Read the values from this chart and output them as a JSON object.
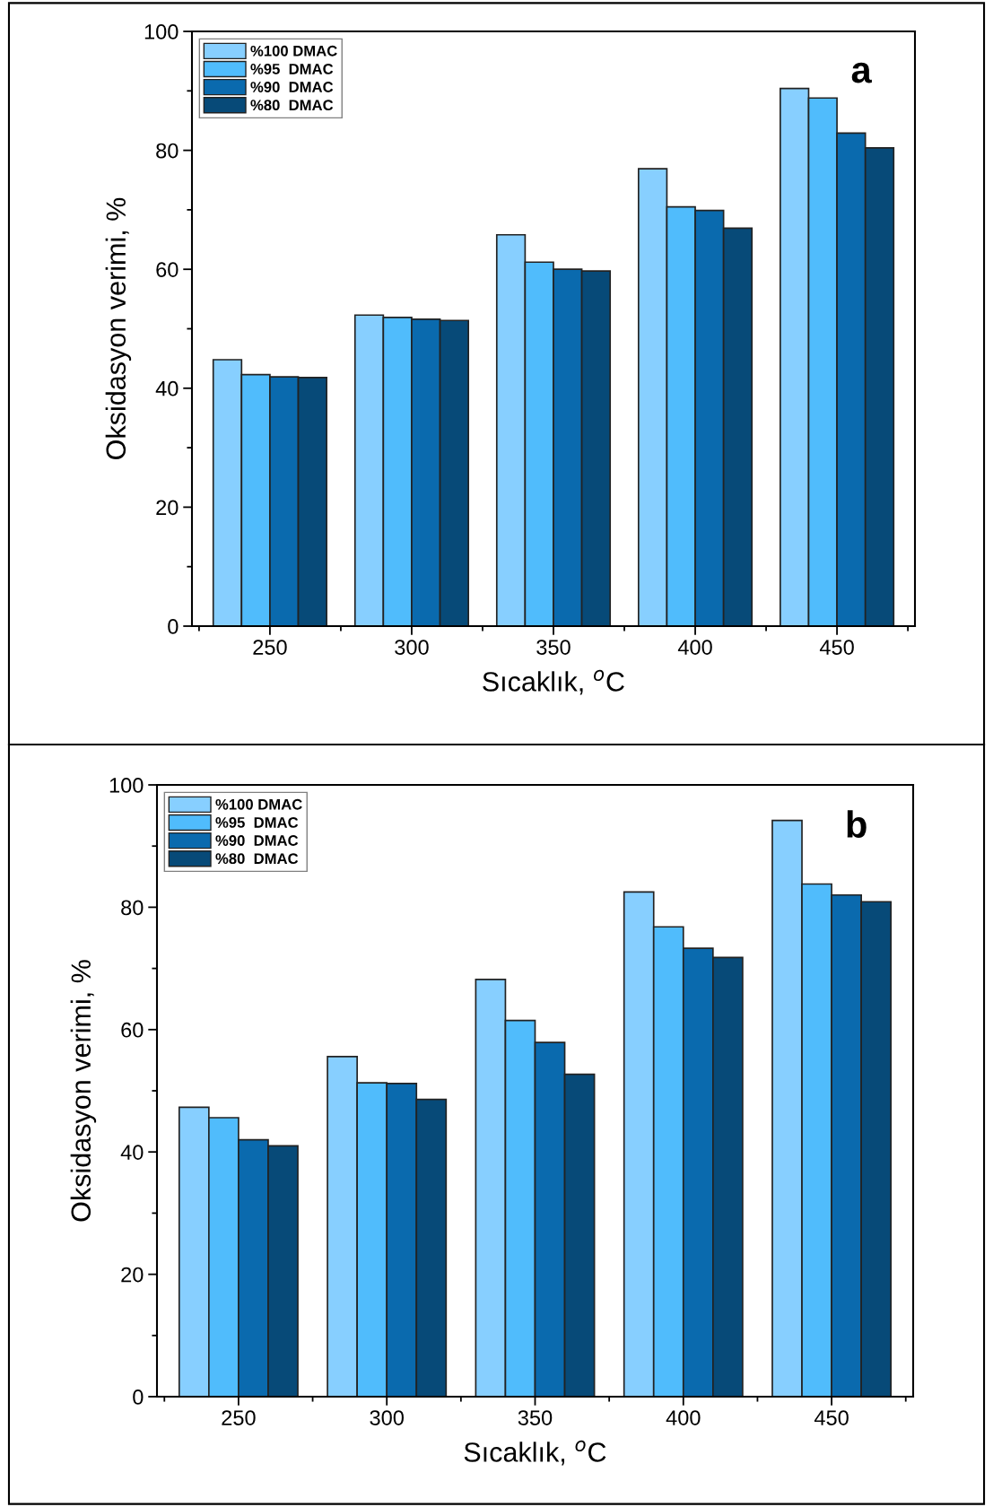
{
  "chart_data": [
    {
      "type": "bar",
      "categories": [
        "250",
        "300",
        "350",
        "400",
        "450"
      ],
      "xlabel": "Sıcaklık, $^{o}$C",
      "ylabel": "Oksidasyon verimi, %",
      "ylim": [
        0,
        100
      ],
      "yticks": [
        0,
        {
          "value": 10,
          "label": null
        },
        20,
        {
          "value": 30,
          "label": null
        },
        40,
        {
          "value": 50,
          "label": null
        },
        60,
        {
          "value": 70,
          "label": null
        },
        80,
        {
          "value": 90,
          "label": null
        },
        100
      ],
      "legend": "top left",
      "grid": false,
      "annotations": [
        "a"
      ],
      "series": [
        {
          "name": "%100 DMAC",
          "color": "#87cfff",
          "values": [
            44.8,
            52.3,
            65.8,
            76.9,
            90.4
          ]
        },
        {
          "name": "%95  DMAC",
          "color": "#50bcfc",
          "values": [
            42.3,
            51.9,
            61.2,
            70.5,
            88.8
          ]
        },
        {
          "name": "%90  DMAC",
          "color": "#0a6aae",
          "values": [
            41.9,
            51.6,
            60.0,
            69.9,
            82.9
          ]
        },
        {
          "name": "%80  DMAC",
          "color": "#074a78",
          "values": [
            41.8,
            51.4,
            59.7,
            66.9,
            80.4
          ]
        }
      ]
    },
    {
      "type": "bar",
      "categories": [
        "250",
        "300",
        "350",
        "400",
        "450"
      ],
      "xlabel": "Sıcaklık, $^{o}$C",
      "ylabel": "Oksidasyon verimi, %",
      "ylim": [
        0,
        100
      ],
      "yticks": [
        0,
        {
          "value": 10,
          "label": null
        },
        20,
        {
          "value": 30,
          "label": null
        },
        40,
        {
          "value": 50,
          "label": null
        },
        60,
        {
          "value": 70,
          "label": null
        },
        80,
        {
          "value": 90,
          "label": null
        },
        100
      ],
      "legend": "top left",
      "grid": false,
      "annotations": [
        "b"
      ],
      "series": [
        {
          "name": "%100 DMAC",
          "color": "#87cfff",
          "values": [
            47.3,
            55.6,
            68.2,
            82.5,
            94.2
          ]
        },
        {
          "name": "%95  DMAC",
          "color": "#50bcfc",
          "values": [
            45.6,
            51.3,
            61.5,
            76.8,
            83.8
          ]
        },
        {
          "name": "%90  DMAC",
          "color": "#0a6aae",
          "values": [
            42.0,
            51.2,
            57.9,
            73.3,
            82.0
          ]
        },
        {
          "name": "%80  DMAC",
          "color": "#074a78",
          "values": [
            41.0,
            48.6,
            52.7,
            71.8,
            80.9
          ]
        }
      ]
    }
  ]
}
